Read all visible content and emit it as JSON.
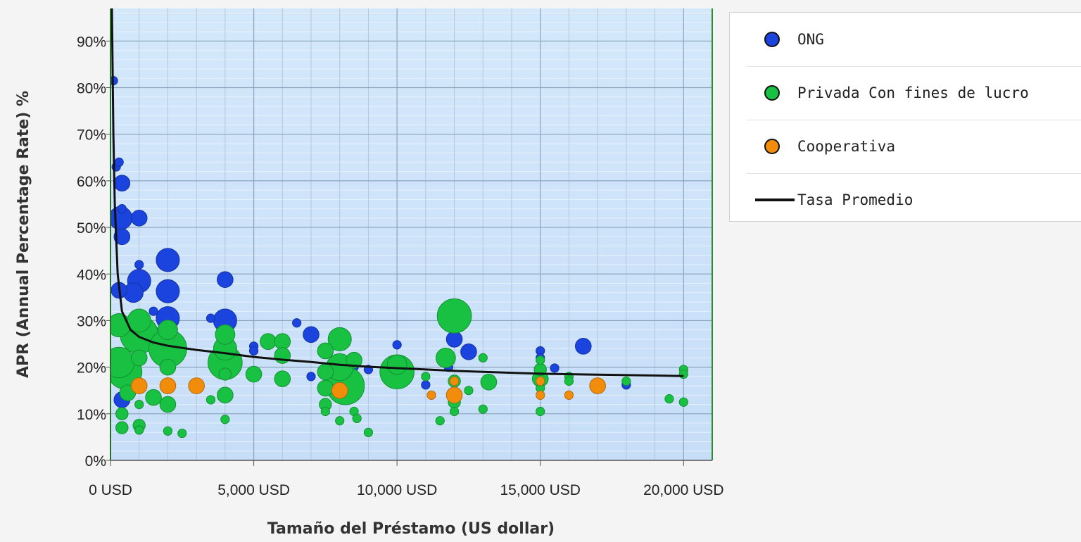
{
  "chart_data": {
    "type": "scatter",
    "title": "",
    "xlabel": "Tamaño del Préstamo (US dollar)",
    "ylabel": "APR (Annual Percentage Rate) %",
    "xlim": [
      0,
      21000
    ],
    "ylim": [
      0,
      97
    ],
    "x_ticks": [
      {
        "value": 0,
        "label": "0 USD"
      },
      {
        "value": 5000,
        "label": "5,000 USD"
      },
      {
        "value": 10000,
        "label": "10,000 USD"
      },
      {
        "value": 15000,
        "label": "15,000 USD"
      },
      {
        "value": 20000,
        "label": "20,000 USD"
      }
    ],
    "y_ticks": [
      {
        "value": 0,
        "label": "0%"
      },
      {
        "value": 10,
        "label": "10%"
      },
      {
        "value": 20,
        "label": "20%"
      },
      {
        "value": 30,
        "label": "30%"
      },
      {
        "value": 40,
        "label": "40%"
      },
      {
        "value": 50,
        "label": "50%"
      },
      {
        "value": 60,
        "label": "60%"
      },
      {
        "value": 70,
        "label": "70%"
      },
      {
        "value": 80,
        "label": "80%"
      },
      {
        "value": 90,
        "label": "90%"
      }
    ],
    "grid": true,
    "legend_position": "right",
    "series": [
      {
        "name": "ONG",
        "color": "#1a44dd",
        "points": [
          [
            100,
            81.5,
            1
          ],
          [
            200,
            63,
            1
          ],
          [
            300,
            64,
            1
          ],
          [
            400,
            59.5,
            3
          ],
          [
            400,
            54,
            1
          ],
          [
            350,
            52,
            5
          ],
          [
            400,
            48,
            3
          ],
          [
            1000,
            52,
            3
          ],
          [
            300,
            36.5,
            3
          ],
          [
            800,
            36,
            4
          ],
          [
            1000,
            38.5,
            5
          ],
          [
            1000,
            42,
            1
          ],
          [
            2000,
            43,
            5
          ],
          [
            2000,
            36.3,
            5
          ],
          [
            2000,
            30.5,
            5
          ],
          [
            1500,
            32,
            1
          ],
          [
            4000,
            38.8,
            3
          ],
          [
            3500,
            30.5,
            1
          ],
          [
            4000,
            30,
            5
          ],
          [
            6500,
            29.5,
            1
          ],
          [
            7000,
            27,
            3
          ],
          [
            5000,
            24.5,
            1
          ],
          [
            5000,
            23.5,
            1
          ],
          [
            7000,
            18,
            1
          ],
          [
            8500,
            20,
            1
          ],
          [
            9000,
            19.5,
            1
          ],
          [
            10000,
            24.8,
            1
          ],
          [
            10000,
            21,
            1
          ],
          [
            11000,
            16.2,
            1
          ],
          [
            11800,
            20,
            1
          ],
          [
            12000,
            26,
            3
          ],
          [
            12500,
            23.3,
            3
          ],
          [
            15000,
            23.5,
            1
          ],
          [
            15000,
            22,
            1
          ],
          [
            15500,
            19.8,
            1
          ],
          [
            16500,
            24.5,
            3
          ],
          [
            18000,
            16.2,
            1
          ],
          [
            400,
            13,
            3
          ],
          [
            500,
            23,
            1
          ],
          [
            1500,
            28,
            1
          ]
        ]
      },
      {
        "name": "Privada Con fines de lucro",
        "color": "#19c142",
        "points": [
          [
            300,
            29,
            5
          ],
          [
            300,
            21,
            7
          ],
          [
            500,
            19,
            8
          ],
          [
            600,
            14.5,
            3
          ],
          [
            400,
            10,
            2
          ],
          [
            400,
            7,
            2
          ],
          [
            1000,
            7.5,
            2
          ],
          [
            1000,
            6.5,
            1
          ],
          [
            1000,
            27,
            9
          ],
          [
            1000,
            30,
            5
          ],
          [
            1000,
            22,
            3
          ],
          [
            1000,
            12,
            1
          ],
          [
            1500,
            13.5,
            3
          ],
          [
            2000,
            24,
            9
          ],
          [
            2000,
            28,
            4
          ],
          [
            2000,
            20,
            3
          ],
          [
            2000,
            12,
            3
          ],
          [
            2000,
            6.3,
            1
          ],
          [
            2500,
            5.8,
            1
          ],
          [
            3500,
            13,
            1
          ],
          [
            4000,
            27,
            4
          ],
          [
            4000,
            21,
            8
          ],
          [
            4000,
            24,
            5
          ],
          [
            4000,
            14,
            3
          ],
          [
            4000,
            8.8,
            1
          ],
          [
            4000,
            18.5,
            2
          ],
          [
            5000,
            18.5,
            3
          ],
          [
            5500,
            25.5,
            3
          ],
          [
            6000,
            25.5,
            3
          ],
          [
            6000,
            22.5,
            3
          ],
          [
            6000,
            17.5,
            3
          ],
          [
            7500,
            23.5,
            3
          ],
          [
            7500,
            19,
            3
          ],
          [
            7500,
            15.5,
            3
          ],
          [
            7500,
            12,
            2
          ],
          [
            7500,
            10.5,
            1
          ],
          [
            8000,
            26,
            5
          ],
          [
            8000,
            20,
            6
          ],
          [
            8200,
            16,
            9
          ],
          [
            8000,
            8.5,
            1
          ],
          [
            8500,
            21.5,
            3
          ],
          [
            8500,
            10.5,
            1
          ],
          [
            8600,
            9,
            1
          ],
          [
            9000,
            6,
            1
          ],
          [
            10000,
            19,
            8
          ],
          [
            10000,
            20.5,
            4
          ],
          [
            11000,
            18,
            1
          ],
          [
            11500,
            8.5,
            1
          ],
          [
            11700,
            22,
            4
          ],
          [
            12000,
            31,
            8
          ],
          [
            12000,
            17,
            2
          ],
          [
            12000,
            12.5,
            2
          ],
          [
            12000,
            10.5,
            1
          ],
          [
            12500,
            15,
            1
          ],
          [
            13000,
            11,
            1
          ],
          [
            13000,
            22,
            1
          ],
          [
            13200,
            16.8,
            3
          ],
          [
            15000,
            21.5,
            1
          ],
          [
            15000,
            19.5,
            2
          ],
          [
            15000,
            17.5,
            3
          ],
          [
            15000,
            15.5,
            1
          ],
          [
            15000,
            10.5,
            1
          ],
          [
            16000,
            18,
            1
          ],
          [
            16000,
            17,
            1
          ],
          [
            18000,
            17,
            1
          ],
          [
            19500,
            13.2,
            1
          ],
          [
            20000,
            19.5,
            1
          ],
          [
            20000,
            18.5,
            1
          ],
          [
            20000,
            12.5,
            1
          ]
        ]
      },
      {
        "name": "Cooperativa",
        "color": "#f28d0c",
        "points": [
          [
            1000,
            16,
            3
          ],
          [
            2000,
            16,
            3
          ],
          [
            3000,
            16,
            3
          ],
          [
            8000,
            15,
            3
          ],
          [
            11200,
            14,
            1
          ],
          [
            12000,
            14,
            3
          ],
          [
            12000,
            17,
            1
          ],
          [
            15000,
            17,
            1
          ],
          [
            15000,
            14,
            1
          ],
          [
            16000,
            14,
            1
          ],
          [
            17000,
            16,
            3
          ]
        ]
      }
    ],
    "lines": [
      {
        "name": "Tasa Promedio",
        "color": "#111111",
        "points": [
          [
            50,
            97
          ],
          [
            100,
            70
          ],
          [
            150,
            55
          ],
          [
            250,
            40
          ],
          [
            400,
            32
          ],
          [
            700,
            28
          ],
          [
            1000,
            26.5
          ],
          [
            1500,
            25.3
          ],
          [
            2000,
            24.6
          ],
          [
            3000,
            23.7
          ],
          [
            4000,
            23
          ],
          [
            5000,
            22.2
          ],
          [
            6000,
            21.6
          ],
          [
            7000,
            21.1
          ],
          [
            8000,
            20.5
          ],
          [
            9000,
            20.1
          ],
          [
            10000,
            19.8
          ],
          [
            11000,
            19.5
          ],
          [
            12000,
            19.2
          ],
          [
            13000,
            19
          ],
          [
            14000,
            18.8
          ],
          [
            15000,
            18.6
          ],
          [
            16000,
            18.5
          ],
          [
            17000,
            18.4
          ],
          [
            18000,
            18.3
          ],
          [
            19000,
            18.2
          ],
          [
            20000,
            18.1
          ]
        ]
      }
    ]
  },
  "legend": {
    "items": [
      {
        "label": "ONG",
        "color": "#1a44dd",
        "symbol": "circle"
      },
      {
        "label": "Privada Con fines de lucro",
        "color": "#19c142",
        "symbol": "circle"
      },
      {
        "label": "Cooperativa",
        "color": "#f28d0c",
        "symbol": "circle"
      },
      {
        "label": "Tasa Promedio",
        "color": "#111111",
        "symbol": "line"
      }
    ]
  }
}
